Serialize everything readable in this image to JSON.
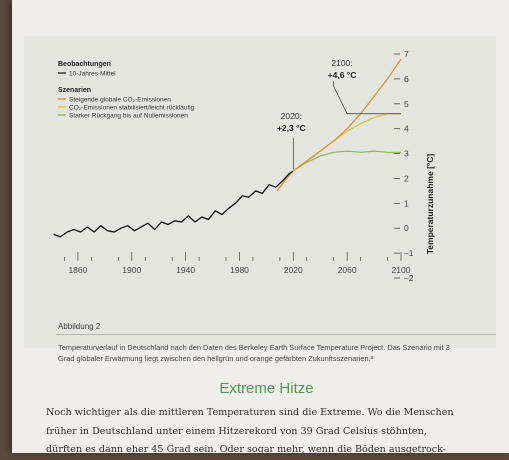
{
  "chart_data": {
    "type": "line",
    "xlim": [
      1840,
      2100
    ],
    "ylim": [
      -2,
      7
    ],
    "x_ticks": [
      1860,
      1900,
      1940,
      1980,
      2020,
      2060,
      2100
    ],
    "y_ticks": [
      7,
      6,
      5,
      4,
      3,
      2,
      1,
      0,
      -1,
      -2
    ],
    "y_tick_labels": [
      "7",
      "6",
      "5",
      "4",
      "3",
      "2",
      "1",
      "0",
      "–1",
      "–2"
    ],
    "ylabel": "Temperaturzunahme [°C]",
    "legend": {
      "observations_title": "Beobachtungen",
      "observations_item": "10-Jahres-Mittel",
      "scenarios_title": "Szenarien",
      "scenario_items": [
        "Steigende globale CO₂-Emissionen",
        "CO₂-Emissionen stabilisiert/leicht rückläufig",
        "Starker Rückgang bis auf Nullemissionen"
      ]
    },
    "annotations": [
      {
        "year_label": "2020:",
        "value_label": "+2,3 °C",
        "x": 2020,
        "y": 2.3
      },
      {
        "year_label": "2100:",
        "value_label": "+4,6 °C",
        "x": 2100,
        "y": 4.6
      }
    ],
    "series": [
      {
        "name": "10-Jahres-Mittel",
        "color": "#111111",
        "x": [
          1842,
          1847,
          1852,
          1857,
          1862,
          1867,
          1872,
          1877,
          1882,
          1887,
          1892,
          1897,
          1902,
          1907,
          1912,
          1917,
          1922,
          1927,
          1932,
          1937,
          1942,
          1947,
          1952,
          1957,
          1962,
          1967,
          1972,
          1977,
          1982,
          1987,
          1992,
          1997,
          2002,
          2007,
          2012,
          2017,
          2020
        ],
        "y": [
          -0.25,
          -0.35,
          -0.15,
          -0.05,
          -0.15,
          0.05,
          -0.15,
          0.1,
          -0.1,
          -0.15,
          0.0,
          0.1,
          -0.1,
          0.05,
          0.2,
          -0.05,
          0.25,
          0.15,
          0.3,
          0.25,
          0.5,
          0.25,
          0.45,
          0.35,
          0.7,
          0.55,
          0.8,
          1.0,
          1.3,
          1.25,
          1.5,
          1.4,
          1.75,
          1.65,
          1.9,
          2.2,
          2.3
        ]
      },
      {
        "name": "Steigende globale CO₂-Emissionen",
        "color": "#e38a2c",
        "x": [
          2008,
          2015,
          2020,
          2030,
          2040,
          2050,
          2060,
          2070,
          2080,
          2090,
          2100
        ],
        "y": [
          1.5,
          2.0,
          2.3,
          2.7,
          3.1,
          3.5,
          4.0,
          4.6,
          5.3,
          6.0,
          6.8
        ]
      },
      {
        "name": "CO₂-Emissionen stabilisiert/leicht rückläufig",
        "color": "#d6c53a",
        "x": [
          2008,
          2015,
          2020,
          2030,
          2040,
          2050,
          2060,
          2070,
          2080,
          2090,
          2100
        ],
        "y": [
          1.5,
          2.0,
          2.3,
          2.7,
          3.1,
          3.5,
          3.9,
          4.2,
          4.45,
          4.6,
          4.6
        ]
      },
      {
        "name": "Starker Rückgang bis auf Nullemissionen",
        "color": "#8cb85a",
        "x": [
          2008,
          2015,
          2020,
          2030,
          2040,
          2050,
          2060,
          2070,
          2080,
          2090,
          2100
        ],
        "y": [
          1.5,
          2.0,
          2.3,
          2.65,
          2.9,
          3.05,
          3.1,
          3.05,
          3.1,
          3.05,
          3.05
        ]
      }
    ]
  },
  "caption": {
    "label": "Abbildung 2",
    "text": "Temperaturverlauf in Deutschland nach den Daten des Berkeley Earth Surface Temperature Project. Das Szenario mit 3 Grad globaler Erwärmung liegt zwischen den hellgrün und orange gefärbten Zukunftsszenarien.³"
  },
  "section_heading": "Extreme Hitze",
  "body_lines": [
    "Noch wichtiger als die mittleren Temperaturen sind die Extreme. Wo die Menschen",
    "früher in Deutschland unter einem Hitzerekord von 39 Grad Celsius stöhnten,",
    "dürften es dann eher 45 Grad sein. Oder sogar mehr, wenn die Böden ausgetrock-"
  ]
}
